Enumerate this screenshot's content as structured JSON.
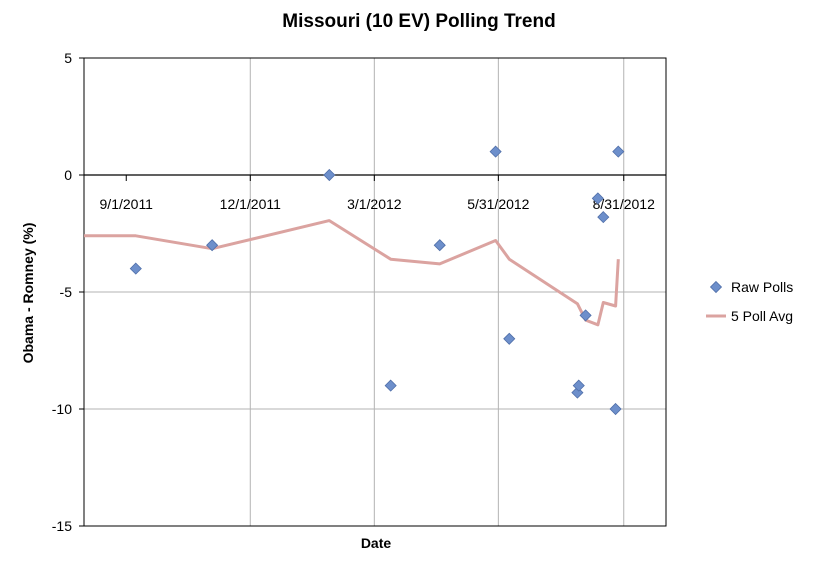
{
  "chart_data": {
    "type": "scatter",
    "title": "Missouri (10 EV) Polling Trend",
    "xlabel": "Date",
    "ylabel": "Obama - Romney (%)",
    "xlim": [
      "2011-08-01",
      "2012-10-01"
    ],
    "ylim": [
      -15,
      5
    ],
    "y_ticks": [
      5,
      0,
      -5,
      -10,
      -15
    ],
    "x_ticks": [
      {
        "date": "2011-09-01",
        "label": "9/1/2011"
      },
      {
        "date": "2011-12-01",
        "label": "12/1/2011"
      },
      {
        "date": "2012-03-01",
        "label": "3/1/2012"
      },
      {
        "date": "2012-05-31",
        "label": "5/31/2012"
      },
      {
        "date": "2012-08-31",
        "label": "8/31/2012"
      }
    ],
    "grid": true,
    "legend_position": "right",
    "series": [
      {
        "name": "Raw Polls",
        "kind": "scatter",
        "color": "#6d8fcb",
        "points": [
          {
            "x": "2011-09-08",
            "y": -4
          },
          {
            "x": "2011-11-03",
            "y": -3
          },
          {
            "x": "2012-01-28",
            "y": 0
          },
          {
            "x": "2012-03-13",
            "y": -9
          },
          {
            "x": "2012-04-18",
            "y": -3
          },
          {
            "x": "2012-05-29",
            "y": 1
          },
          {
            "x": "2012-06-08",
            "y": -7
          },
          {
            "x": "2012-07-28",
            "y": -9.3
          },
          {
            "x": "2012-07-29",
            "y": -9
          },
          {
            "x": "2012-08-03",
            "y": -6
          },
          {
            "x": "2012-08-12",
            "y": -1
          },
          {
            "x": "2012-08-16",
            "y": -1.8
          },
          {
            "x": "2012-08-25",
            "y": -10
          },
          {
            "x": "2012-08-27",
            "y": 1
          }
        ]
      },
      {
        "name": "5 Poll Avg",
        "kind": "line",
        "color": "#dba3a0",
        "points": [
          {
            "x": "2011-08-01",
            "y": -2.6
          },
          {
            "x": "2011-09-08",
            "y": -2.6
          },
          {
            "x": "2011-11-03",
            "y": -3.15
          },
          {
            "x": "2012-01-28",
            "y": -1.95
          },
          {
            "x": "2012-03-13",
            "y": -3.6
          },
          {
            "x": "2012-04-18",
            "y": -3.8
          },
          {
            "x": "2012-05-29",
            "y": -2.8
          },
          {
            "x": "2012-06-08",
            "y": -3.6
          },
          {
            "x": "2012-07-28",
            "y": -5.5
          },
          {
            "x": "2012-08-03",
            "y": -6.2
          },
          {
            "x": "2012-08-12",
            "y": -6.4
          },
          {
            "x": "2012-08-16",
            "y": -5.45
          },
          {
            "x": "2012-08-25",
            "y": -5.6
          },
          {
            "x": "2012-08-27",
            "y": -3.6
          }
        ]
      }
    ]
  }
}
